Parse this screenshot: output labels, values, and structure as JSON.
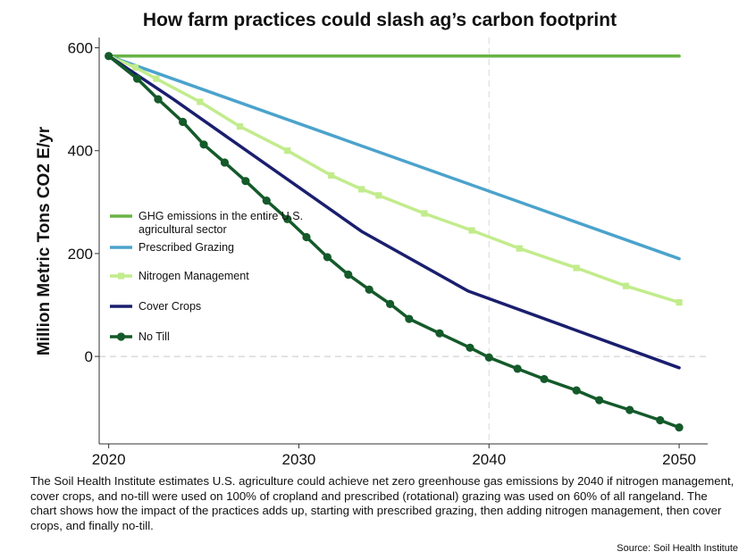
{
  "chart_data": {
    "type": "line",
    "title": "How farm practices could slash ag’s carbon footprint",
    "ylabel": "Million Metric Tons CO2 E/yr",
    "xlabel": "",
    "xlim": [
      2019.5,
      2051.5
    ],
    "ylim": [
      -170,
      620
    ],
    "x_ticks": [
      "2020",
      "2030",
      "2040",
      "2050"
    ],
    "y_ticks": [
      "600",
      "400",
      "200",
      "0"
    ],
    "reference_lines": {
      "x": 2040,
      "y": 0
    },
    "legend_position": "left-middle",
    "series": [
      {
        "name": "GHG emissions in the entire U.S. agricultural sector",
        "color": "#6ab446",
        "marker": "none",
        "x": [
          2020,
          2050
        ],
        "y": [
          584,
          584
        ]
      },
      {
        "name": "Prescribed Grazing",
        "color": "#4ba3cc",
        "marker": "none",
        "x": [
          2020,
          2050
        ],
        "y": [
          584,
          190
        ]
      },
      {
        "name": "Nitrogen Management",
        "color": "#c2ec8c",
        "marker": "square",
        "x": [
          2020,
          2021.4,
          2022.5,
          2024.8,
          2026.9,
          2029.4,
          2031.7,
          2033.3,
          2034.2,
          2036.6,
          2039.1,
          2041.6,
          2044.6,
          2047.2,
          2050
        ],
        "y": [
          584,
          562,
          540,
          495,
          447,
          400,
          352,
          325,
          313,
          278,
          245,
          210,
          172,
          137,
          105
        ]
      },
      {
        "name": "Cover Crops",
        "color": "#1a1e6e",
        "marker": "none",
        "x": [
          2020,
          2023.4,
          2033.3,
          2038.9,
          2050
        ],
        "y": [
          584,
          500,
          243,
          127,
          -22
        ]
      },
      {
        "name": "No Till",
        "color": "#145a2a",
        "marker": "circle",
        "x": [
          2020,
          2021.5,
          2022.6,
          2023.9,
          2025.0,
          2026.1,
          2027.2,
          2028.3,
          2029.4,
          2030.4,
          2031.5,
          2032.6,
          2033.7,
          2034.8,
          2035.8,
          2037.4,
          2039.0,
          2040.0,
          2041.5,
          2042.9,
          2044.6,
          2045.8,
          2047.4,
          2049.0,
          2050
        ],
        "y": [
          584,
          540,
          500,
          456,
          412,
          377,
          341,
          303,
          267,
          232,
          193,
          159,
          130,
          102,
          73,
          45,
          17,
          -2,
          -24,
          -44,
          -66,
          -85,
          -104,
          -124,
          -138
        ]
      }
    ]
  },
  "caption": "The Soil Health Institute estimates U.S. agriculture could achieve net zero greenhouse gas emissions by 2040 if nitrogen management, cover crops, and no-till were used on 100% of cropland and prescribed (rotational) grazing was used on 60% of all rangeland. The chart shows how the impact of the practices adds up, starting with prescribed grazing, then adding nitrogen management, then cover crops, and finally no-till.",
  "source": "Source: Soil Health Institute"
}
